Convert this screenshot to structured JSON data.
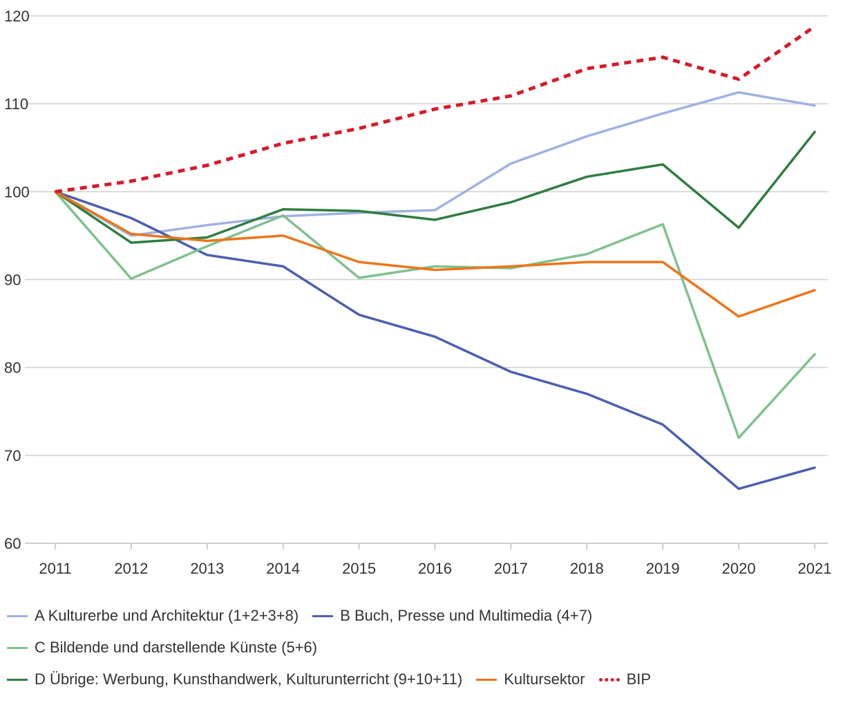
{
  "chart_data": {
    "type": "line",
    "title": "",
    "xlabel": "",
    "ylabel": "",
    "x": [
      "2011",
      "2012",
      "2013",
      "2014",
      "2015",
      "2016",
      "2017",
      "2018",
      "2019",
      "2020",
      "2021"
    ],
    "ylim": [
      60,
      120
    ],
    "yticks": [
      "60",
      "70",
      "80",
      "90",
      "100",
      "110",
      "120"
    ],
    "grid": true,
    "legend_position": "bottom",
    "series": [
      {
        "name": "A Kulturerbe und Architektur (1+2+3+8)",
        "color": "#9fb1e3",
        "dash": "solid",
        "values": [
          100,
          95.0,
          96.2,
          97.2,
          97.6,
          97.9,
          103.2,
          106.3,
          108.9,
          111.3,
          109.8
        ]
      },
      {
        "name": "B Buch, Presse und Multimedia (4+7)",
        "color": "#4a5fb0",
        "dash": "solid",
        "values": [
          100,
          97.0,
          92.8,
          91.5,
          86.0,
          83.5,
          79.5,
          77.0,
          73.5,
          66.2,
          68.6
        ]
      },
      {
        "name": "C Bildende und darstellende Künste (5+6)",
        "color": "#7fc18c",
        "dash": "solid",
        "values": [
          100,
          90.1,
          93.8,
          97.3,
          90.2,
          91.5,
          91.3,
          92.9,
          96.3,
          72.0,
          81.5
        ]
      },
      {
        "name": "D Übrige: Werbung, Kunsthandwerk, Kulturunterricht (9+10+11)",
        "color": "#2e7d3f",
        "dash": "solid",
        "values": [
          100,
          94.2,
          94.8,
          98.0,
          97.8,
          96.8,
          98.8,
          101.7,
          103.1,
          95.9,
          106.8
        ]
      },
      {
        "name": "Kultursektor",
        "color": "#ee7418",
        "dash": "solid",
        "values": [
          100,
          95.2,
          94.4,
          95.0,
          92.0,
          91.1,
          91.5,
          92.0,
          92.0,
          85.8,
          88.8
        ]
      },
      {
        "name": "BIP",
        "color": "#d71a2a",
        "dash": "dotted",
        "values": [
          100,
          101.2,
          103.0,
          105.5,
          107.2,
          109.4,
          110.9,
          114.0,
          115.3,
          112.8,
          118.8
        ]
      }
    ],
    "legend_rows": [
      [
        0,
        1
      ],
      [
        2
      ],
      [
        3,
        4,
        5
      ]
    ]
  }
}
